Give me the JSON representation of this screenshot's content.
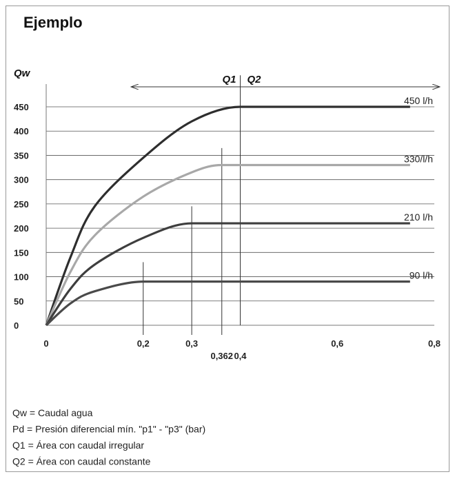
{
  "chart_data": {
    "type": "line",
    "title": "Ejemplo",
    "ylabel": "Qw",
    "region_left": "Q1",
    "region_right": "Q2",
    "xlim": [
      0,
      0.8
    ],
    "ylim": [
      0,
      450
    ],
    "xticks": [
      0,
      {
        "value": 0.2,
        "label": "0,2"
      },
      {
        "value": 0.3,
        "label": "0,3"
      },
      {
        "value": 0.362,
        "label": "0,362"
      },
      {
        "value": 0.4,
        "label": "0,4"
      },
      {
        "value": 0.6,
        "label": "0,6"
      },
      {
        "value": 0.8,
        "label": "0,8"
      }
    ],
    "yticks": [
      0,
      50,
      100,
      150,
      200,
      250,
      300,
      350,
      400,
      450
    ],
    "grid": true,
    "guides": [
      {
        "x": 0.2,
        "top": 130
      },
      {
        "x": 0.3,
        "top": 245
      },
      {
        "x": 0.362,
        "top": 365
      },
      {
        "x": 0.4,
        "top": 515
      }
    ],
    "series": [
      {
        "name": "450 l/h",
        "color": "#2e2e2e",
        "x": [
          0,
          0.05,
          0.1,
          0.2,
          0.3,
          0.4,
          0.75
        ],
        "values": [
          0,
          140,
          245,
          345,
          420,
          450,
          450
        ]
      },
      {
        "name": "330/l/h",
        "color": "#a8a8a8",
        "x": [
          0,
          0.05,
          0.1,
          0.2,
          0.3,
          0.362,
          0.75
        ],
        "values": [
          0,
          110,
          185,
          265,
          315,
          330,
          330
        ]
      },
      {
        "name": "210 l/h",
        "color": "#3e3e3e",
        "x": [
          0,
          0.05,
          0.1,
          0.2,
          0.3,
          0.75
        ],
        "values": [
          0,
          75,
          125,
          180,
          210,
          210
        ]
      },
      {
        "name": "90 l/h",
        "color": "#4a4a4a",
        "x": [
          0,
          0.05,
          0.1,
          0.2,
          0.75
        ],
        "values": [
          0,
          45,
          70,
          90,
          90
        ]
      }
    ],
    "notes": [
      "Qw = Caudal agua",
      "Pd = Presión diferencial mín. \"p1\" - \"p3\" (bar)",
      "Q1 = Área con caudal irregular",
      "Q2 = Área con caudal constante"
    ]
  }
}
